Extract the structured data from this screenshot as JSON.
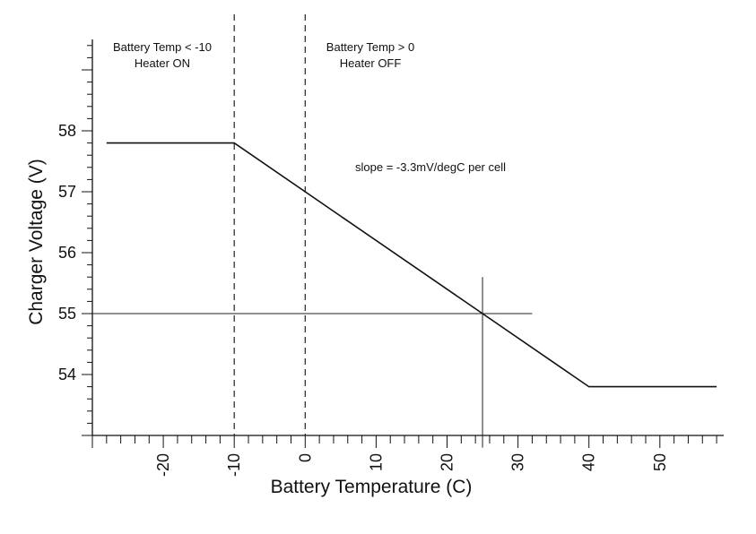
{
  "chart_data": {
    "type": "line",
    "xlabel": "Battery Temperature (C)",
    "ylabel": "Charger Voltage (V)",
    "xlim": [
      -30,
      59
    ],
    "ylim": [
      53,
      59.5
    ],
    "x_ticks": [
      "-20",
      "-10",
      "0",
      "10",
      "20",
      "30",
      "40",
      "50"
    ],
    "y_ticks": [
      "54",
      "55",
      "56",
      "57",
      "58"
    ],
    "series": [
      {
        "x": [
          -28,
          -10,
          40,
          58
        ],
        "y": [
          57.8,
          57.8,
          53.8,
          53.8
        ]
      }
    ],
    "threshold_lines": [
      {
        "x": -10,
        "style": "dashed"
      },
      {
        "x": 0,
        "style": "dashed"
      }
    ],
    "reference_lines": {
      "horizontal": {
        "y": 55,
        "x_range": [
          -30,
          32
        ]
      },
      "vertical": {
        "x": 25,
        "y_range": [
          52.8,
          55.6
        ]
      }
    },
    "annotations": {
      "cold_zone": [
        "Battery Temp < -10",
        "Heater ON"
      ],
      "warm_zone": [
        "Battery Temp > 0",
        "Heater OFF"
      ],
      "slope": "slope = -3.3mV/degC per cell"
    },
    "grid": false,
    "legend": "none"
  }
}
